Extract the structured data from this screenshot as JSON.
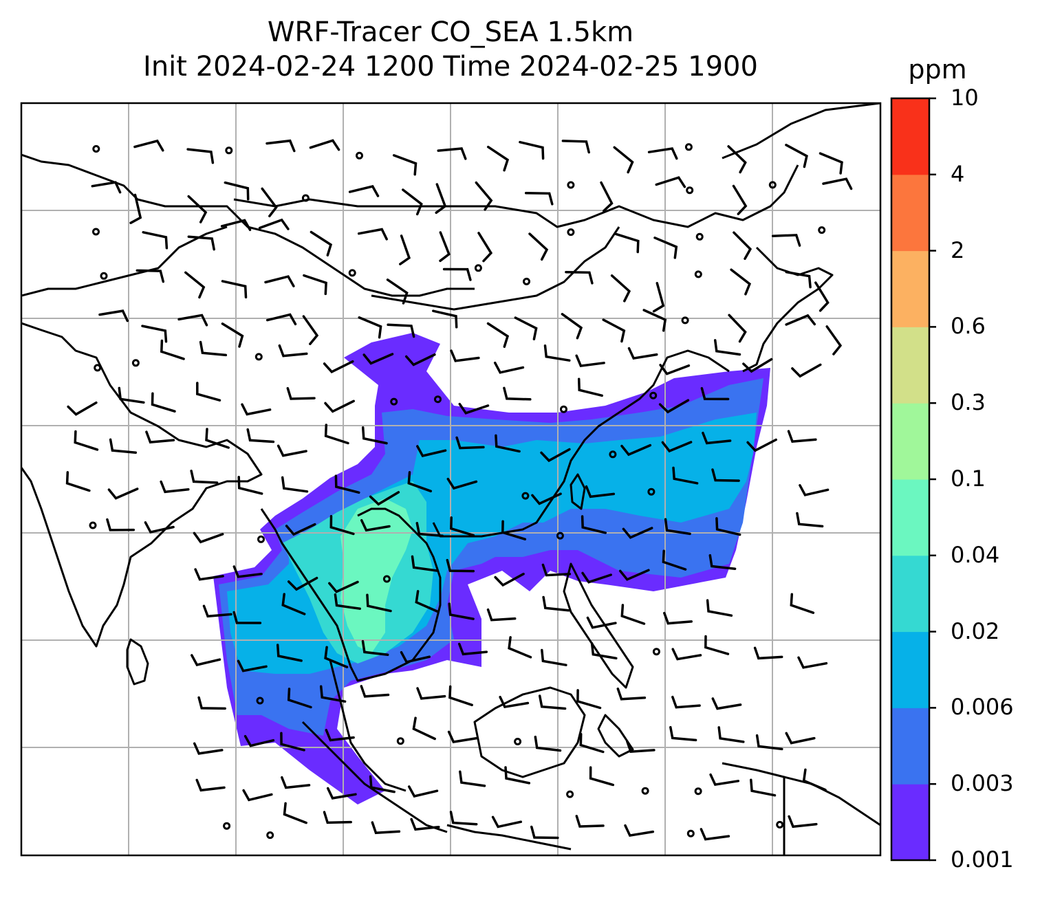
{
  "title": {
    "line1": "WRF-Tracer CO_SEA 1.5km",
    "line2": "Init 2024-02-24 1200 Time 2024-02-25 1900"
  },
  "colorbar": {
    "unit": "ppm",
    "levels": [
      "0.001",
      "0.003",
      "0.006",
      "0.02",
      "0.04",
      "0.1",
      "0.3",
      "0.6",
      "2",
      "4",
      "10"
    ],
    "colors": [
      "#6a2cff",
      "#3a73f0",
      "#06b1e8",
      "#35d9d2",
      "#6bf7c0",
      "#a0f79a",
      "#d2e089",
      "#fcb161",
      "#fc763d",
      "#f9311a"
    ]
  },
  "map": {
    "gridline_color": "#b0b0b0",
    "coastline_color": "#000000",
    "tracer_field_colors": {
      "outer": "#6a2cff",
      "band2": "#3a73f0",
      "band3": "#06b1e8",
      "band4": "#35d9d2",
      "core": "#6bf7c0"
    },
    "wind_symbols": "wind barbs and calm-wind circles"
  }
}
